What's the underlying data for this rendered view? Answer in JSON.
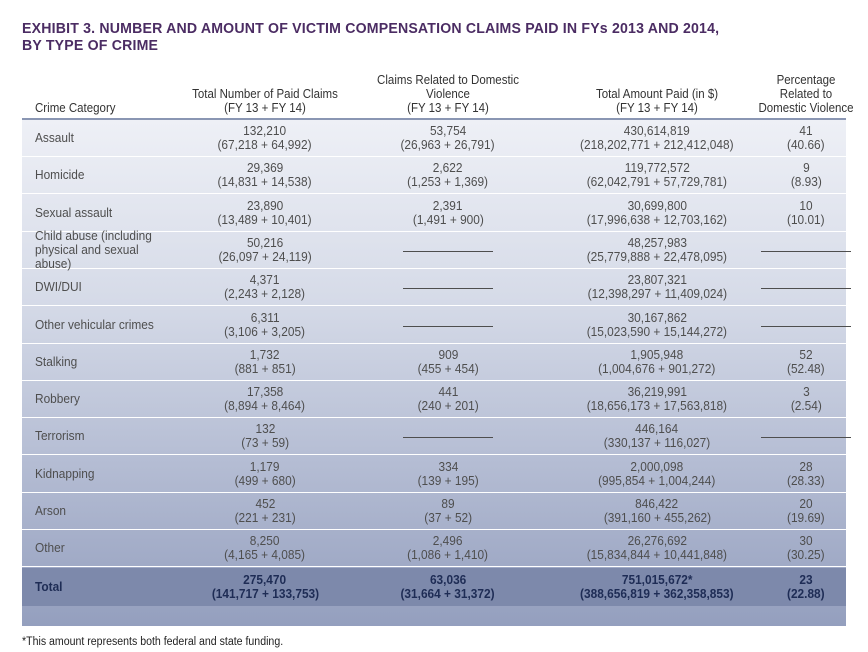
{
  "title": {
    "line1": "EXHIBIT 3. NUMBER AND AMOUNT OF VICTIM COMPENSATION CLAIMS PAID IN FYs 2013 AND 2014,",
    "line2": "BY TYPE OF CRIME"
  },
  "headers": {
    "category": "Crime Category",
    "total_claims": [
      "Total Number of Paid Claims",
      "(FY 13 + FY 14)"
    ],
    "domestic_claims": [
      "Claims Related to Domestic",
      "Violence",
      "(FY 13 + FY 14)"
    ],
    "amount_paid": [
      "Total Amount Paid (in $)",
      "(FY 13 + FY 14)"
    ],
    "percentage": [
      "Percentage",
      "Related to",
      "Domestic Violence"
    ]
  },
  "rows": [
    {
      "category": "Assault",
      "claims": "132,210",
      "claims_split": "(67,218 + 64,992)",
      "dv": "53,754",
      "dv_split": "(26,963 + 26,791)",
      "amount": "430,614,819",
      "amount_split": "(218,202,771 + 212,412,048)",
      "pct": "41",
      "pct_detail": "(40.66)"
    },
    {
      "category": "Homicide",
      "claims": "29,369",
      "claims_split": "(14,831 + 14,538)",
      "dv": "2,622",
      "dv_split": "(1,253 + 1,369)",
      "amount": "119,772,572",
      "amount_split": "(62,042,791 + 57,729,781)",
      "pct": "9",
      "pct_detail": "(8.93)"
    },
    {
      "category": "Sexual assault",
      "claims": "23,890",
      "claims_split": "(13,489 + 10,401)",
      "dv": "2,391",
      "dv_split": "(1,491 + 900)",
      "amount": "30,699,800",
      "amount_split": "(17,996,638 + 12,703,162)",
      "pct": "10",
      "pct_detail": "(10.01)"
    },
    {
      "category": "Child abuse (including physical and sexual abuse)",
      "claims": "50,216",
      "claims_split": "(26,097 + 24,119)",
      "dv": "",
      "dv_split": "",
      "amount": "48,257,983",
      "amount_split": "(25,779,888 + 22,478,095)",
      "pct": "",
      "pct_detail": ""
    },
    {
      "category": "DWI/DUI",
      "claims": "4,371",
      "claims_split": "(2,243 + 2,128)",
      "dv": "",
      "dv_split": "",
      "amount": "23,807,321",
      "amount_split": "(12,398,297 + 11,409,024)",
      "pct": "",
      "pct_detail": ""
    },
    {
      "category": "Other vehicular crimes",
      "claims": "6,311",
      "claims_split": "(3,106 + 3,205)",
      "dv": "",
      "dv_split": "",
      "amount": "30,167,862",
      "amount_split": "(15,023,590 + 15,144,272)",
      "pct": "",
      "pct_detail": ""
    },
    {
      "category": "Stalking",
      "claims": "1,732",
      "claims_split": "(881 + 851)",
      "dv": "909",
      "dv_split": "(455 + 454)",
      "amount": "1,905,948",
      "amount_split": "(1,004,676 + 901,272)",
      "pct": "52",
      "pct_detail": "(52.48)"
    },
    {
      "category": "Robbery",
      "claims": "17,358",
      "claims_split": "(8,894 + 8,464)",
      "dv": "441",
      "dv_split": "(240 + 201)",
      "amount": "36,219,991",
      "amount_split": "(18,656,173 + 17,563,818)",
      "pct": "3",
      "pct_detail": "(2.54)"
    },
    {
      "category": "Terrorism",
      "claims": "132",
      "claims_split": "(73 + 59)",
      "dv": "",
      "dv_split": "",
      "amount": "446,164",
      "amount_split": "(330,137 + 116,027)",
      "pct": "",
      "pct_detail": ""
    },
    {
      "category": "Kidnapping",
      "claims": "1,179",
      "claims_split": "(499 + 680)",
      "dv": "334",
      "dv_split": "(139 + 195)",
      "amount": "2,000,098",
      "amount_split": "(995,854 + 1,004,244)",
      "pct": "28",
      "pct_detail": "(28.33)"
    },
    {
      "category": "Arson",
      "claims": "452",
      "claims_split": "(221 + 231)",
      "dv": "89",
      "dv_split": "(37 + 52)",
      "amount": "846,422",
      "amount_split": "(391,160 + 455,262)",
      "pct": "20",
      "pct_detail": "(19.69)"
    },
    {
      "category": "Other",
      "claims": "8,250",
      "claims_split": "(4,165 + 4,085)",
      "dv": "2,496",
      "dv_split": "(1,086 + 1,410)",
      "amount": "26,276,692",
      "amount_split": "(15,834,844 + 10,441,848)",
      "pct": "30",
      "pct_detail": "(30.25)"
    }
  ],
  "total": {
    "category": "Total",
    "claims": "275,470",
    "claims_split": "(141,717 + 133,753)",
    "dv": "63,036",
    "dv_split": "(31,664 + 31,372)",
    "amount": "751,015,672*",
    "amount_split": "(388,656,819 + 362,358,853)",
    "pct": "23",
    "pct_detail": "(22.88)"
  },
  "footnote": "*This amount represents both federal and state funding.",
  "colors": {
    "title": "#4b2c63",
    "total_row": "#7d89ab",
    "total_text": "#1e2c55"
  }
}
